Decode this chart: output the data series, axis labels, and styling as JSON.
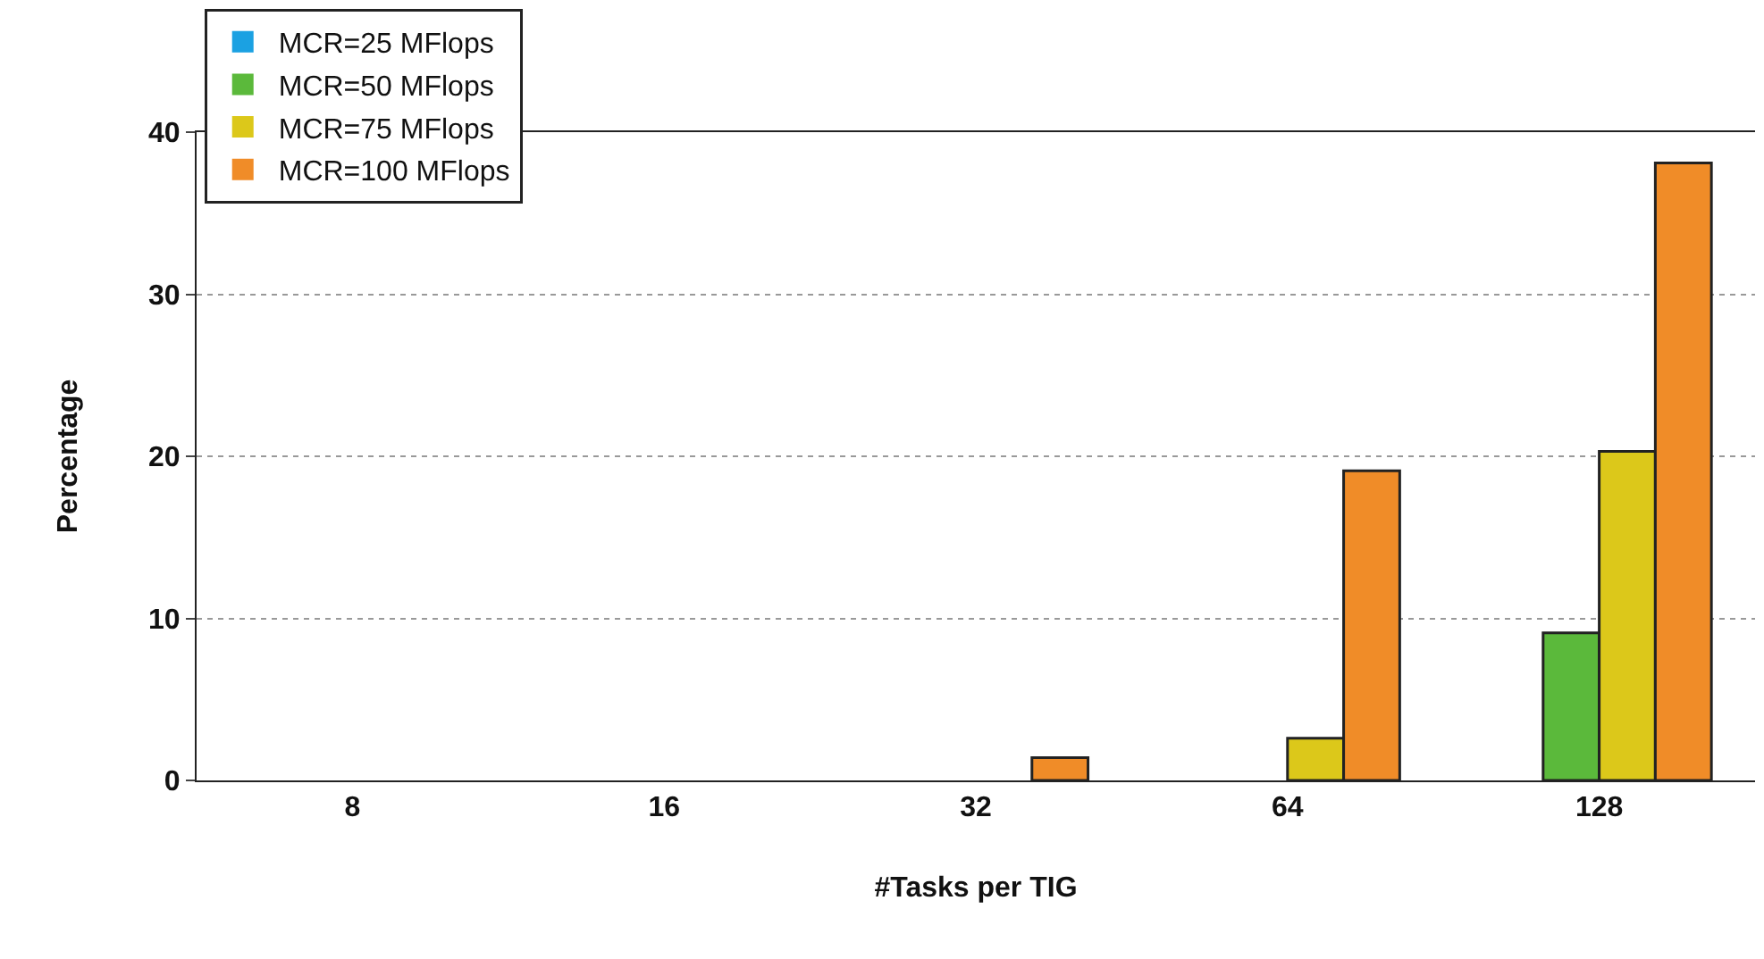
{
  "chart_data": {
    "type": "bar",
    "xlabel": "#Tasks per TIG",
    "ylabel": "Percentage",
    "categories": [
      "8",
      "16",
      "32",
      "64",
      "128"
    ],
    "series": [
      {
        "name": "MCR=25 MFlops",
        "color": "#1ba1e2",
        "values": [
          0,
          0,
          0,
          0,
          0
        ]
      },
      {
        "name": "MCR=50 MFlops",
        "color": "#5bb93b",
        "values": [
          0,
          0,
          0,
          0,
          9.1
        ]
      },
      {
        "name": "MCR=75 MFlops",
        "color": "#dcc81a",
        "values": [
          0,
          0,
          0,
          2.6,
          20.3
        ]
      },
      {
        "name": "MCR=100 MFlops",
        "color": "#f08c28",
        "values": [
          0,
          0,
          1.4,
          19.1,
          38.1
        ]
      }
    ],
    "ylim": [
      0,
      40
    ],
    "yticks": [
      0,
      10,
      20,
      30,
      40
    ],
    "grid": "y",
    "legend": "top left"
  }
}
